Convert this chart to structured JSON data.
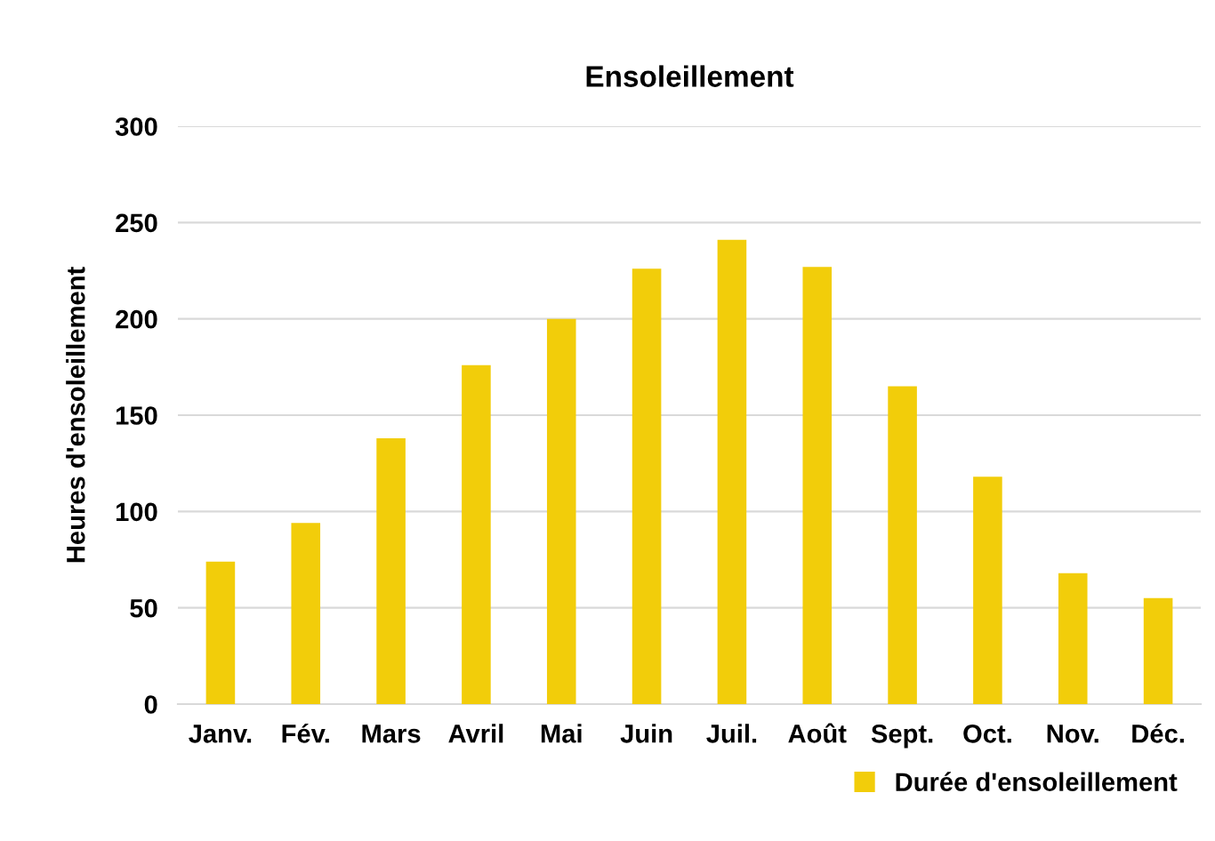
{
  "chart_data": {
    "type": "bar",
    "title": "Ensoleillement",
    "ylabel": "Heures d'ensoleillement",
    "categories": [
      "Janv.",
      "Fév.",
      "Mars",
      "Avril",
      "Mai",
      "Juin",
      "Juil.",
      "Août",
      "Sept.",
      "Oct.",
      "Nov.",
      "Déc."
    ],
    "series": [
      {
        "name": "Durée d'ensoleillement",
        "color": "#f2cd0a",
        "values": [
          74,
          94,
          138,
          176,
          200,
          226,
          241,
          227,
          165,
          118,
          68,
          55
        ]
      }
    ],
    "ylim": [
      0,
      300
    ],
    "yticks": [
      0,
      50,
      100,
      150,
      200,
      250,
      300
    ],
    "grid": "y",
    "legend": "bottom right"
  }
}
